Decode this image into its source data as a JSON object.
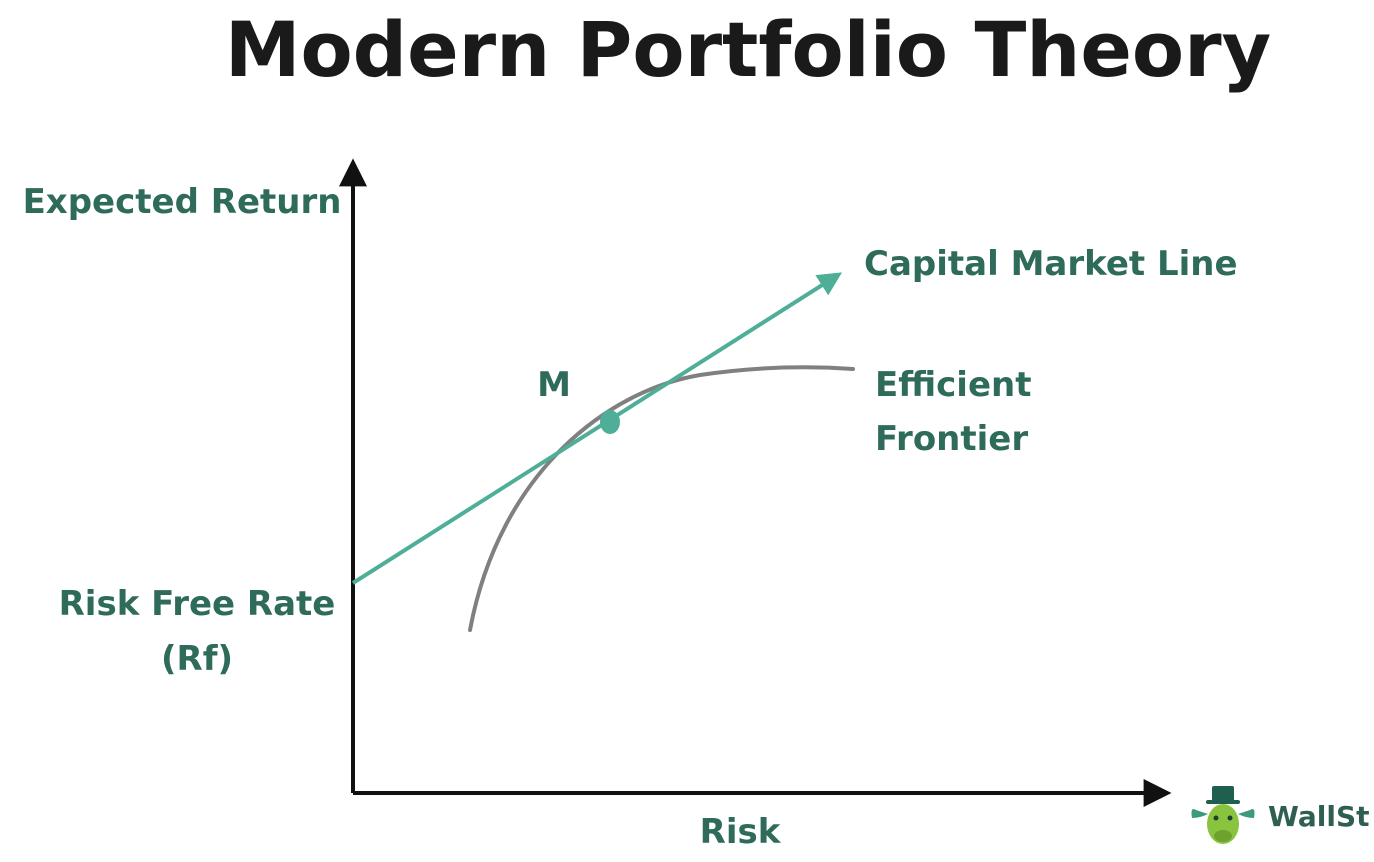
{
  "title": "Modern Portfolio Theory",
  "axes": {
    "y_label": "Expected Return",
    "x_label": "Risk"
  },
  "labels": {
    "cml": "Capital Market Line",
    "frontier_line1": "Efficient",
    "frontier_line2": "Frontier",
    "market_portfolio": "M",
    "rf_line1": "Risk Free Rate",
    "rf_line2": "(Rf)"
  },
  "logo": {
    "text": "WallSt",
    "icon": "bull-mascot-icon"
  },
  "colors": {
    "title": "#1a1a1a",
    "label": "#2f6b5a",
    "cml": "#4fae98",
    "frontier": "#808080",
    "axis": "#111111",
    "market_point": "#4fae98"
  }
}
